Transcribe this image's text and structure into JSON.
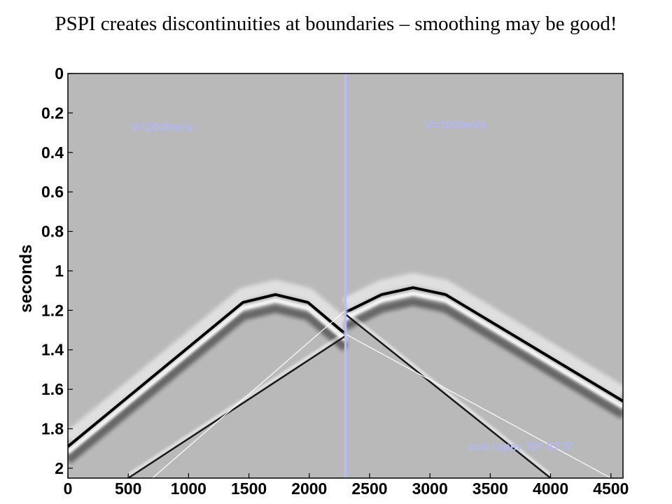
{
  "slide": {
    "title": "PSPI creates discontinuities at boundaries – smoothing may be good!"
  },
  "chart_data": {
    "type": "seismic-image",
    "xlim": [
      0,
      4600
    ],
    "ylim": [
      2.05,
      0
    ],
    "x_ticks": [
      0,
      500,
      1000,
      1500,
      2000,
      2500,
      3000,
      3500,
      4000,
      4500
    ],
    "x_tick_labels": [
      "0",
      "500",
      "1000",
      "1500",
      "2000",
      "2500",
      "3000",
      "3500",
      "4000",
      "4500"
    ],
    "y_ticks": [
      0,
      0.2,
      0.4,
      0.6,
      0.8,
      1,
      1.2,
      1.4,
      1.6,
      1.8,
      2
    ],
    "y_tick_labels": [
      "0",
      "0.2",
      "0.4",
      "0.6",
      "0.8",
      "1",
      "1.2",
      "1.4",
      "1.6",
      "1.8",
      "2"
    ],
    "ylabel": "seconds",
    "xlabel": "",
    "background_color": "#b9b9b9",
    "boundary": {
      "x": 2300,
      "color": "#b9bdf6"
    },
    "annotations": [
      {
        "text": "V=2000m/s",
        "x": 775,
        "y": 0.29
      },
      {
        "text": "V=3000m/s",
        "x": 3210,
        "y": 0.28
      },
      {
        "text": "cos taper 70°-87.5°",
        "x": 3760,
        "y": 1.91
      }
    ],
    "taper_lines": [
      {
        "from": [
          700,
          2.05
        ],
        "to": [
          2300,
          1.2
        ]
      },
      {
        "from": [
          2300,
          1.32
        ],
        "to": [
          4500,
          2.05
        ]
      }
    ],
    "events": [
      {
        "name": "left-hyperbola",
        "points": [
          [
            0,
            1.89
          ],
          [
            1450,
            1.16
          ],
          [
            1720,
            1.12
          ],
          [
            1990,
            1.16
          ],
          [
            2300,
            1.32
          ]
        ]
      },
      {
        "name": "right-hyperbola",
        "points": [
          [
            2300,
            1.21
          ],
          [
            2600,
            1.12
          ],
          [
            2860,
            1.085
          ],
          [
            3130,
            1.12
          ],
          [
            4600,
            1.66
          ]
        ]
      },
      {
        "name": "left-transmitted",
        "points": [
          [
            500,
            2.05
          ],
          [
            2300,
            1.33
          ]
        ]
      },
      {
        "name": "right-transmitted",
        "points": [
          [
            2300,
            1.22
          ],
          [
            4000,
            2.05
          ]
        ]
      }
    ]
  }
}
